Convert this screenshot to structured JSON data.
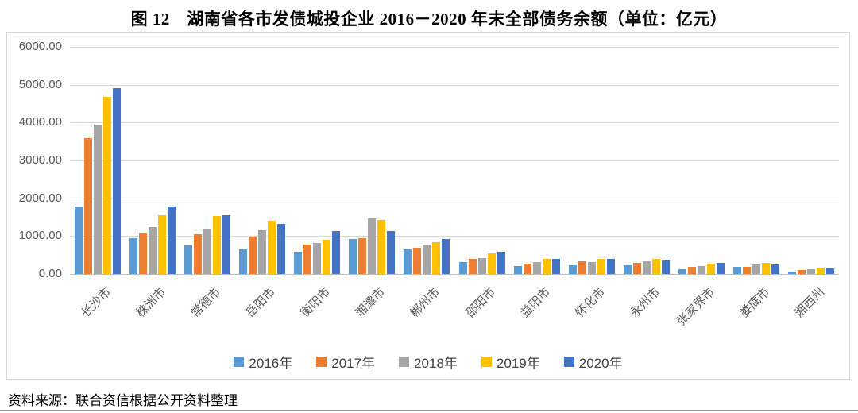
{
  "title": "图 12　湖南省各市发债城投企业 2016－2020 年末全部债务余额（单位：亿元）",
  "source": "资料来源：联合资信根据公开资料整理",
  "colors": {
    "series_2016": "#5B9BD5",
    "series_2017": "#ED7D31",
    "series_2018": "#A5A5A5",
    "series_2019": "#FFC000",
    "series_2020": "#4472C4",
    "gridline": "#D9D9D9",
    "axis_text": "#595959"
  },
  "chart_data": {
    "type": "bar",
    "title": "图 12　湖南省各市发债城投企业 2016－2020 年末全部债务余额（单位：亿元）",
    "unit": "亿元",
    "categories": [
      "长沙市",
      "株洲市",
      "常德市",
      "岳阳市",
      "衡阳市",
      "湘潭市",
      "郴州市",
      "邵阳市",
      "益阳市",
      "怀化市",
      "永州市",
      "张家界市",
      "娄底市",
      "湘西州"
    ],
    "series": [
      {
        "name": "2016年",
        "color": "#5B9BD5",
        "values": [
          1780,
          950,
          750,
          650,
          590,
          930,
          650,
          310,
          220,
          230,
          230,
          130,
          200,
          55
        ]
      },
      {
        "name": "2017年",
        "color": "#ED7D31",
        "values": [
          3580,
          1090,
          1060,
          980,
          770,
          950,
          700,
          400,
          280,
          340,
          300,
          200,
          190,
          110
        ]
      },
      {
        "name": "2018年",
        "color": "#A5A5A5",
        "values": [
          3940,
          1230,
          1200,
          1160,
          820,
          1460,
          780,
          420,
          320,
          310,
          340,
          220,
          260,
          130
        ]
      },
      {
        "name": "2019年",
        "color": "#FFC000",
        "values": [
          4670,
          1550,
          1530,
          1400,
          900,
          1430,
          840,
          550,
          390,
          400,
          410,
          270,
          290,
          160
        ]
      },
      {
        "name": "2020年",
        "color": "#4472C4",
        "values": [
          4920,
          1780,
          1550,
          1330,
          1130,
          1130,
          920,
          580,
          390,
          390,
          370,
          290,
          250,
          145
        ]
      }
    ],
    "ylim": [
      0,
      6000
    ],
    "ytick_labels": [
      "0.00",
      "1000.00",
      "2000.00",
      "3000.00",
      "4000.00",
      "5000.00",
      "6000.00"
    ],
    "grid": true,
    "legend_position": "bottom",
    "xlabel": "",
    "ylabel": ""
  }
}
